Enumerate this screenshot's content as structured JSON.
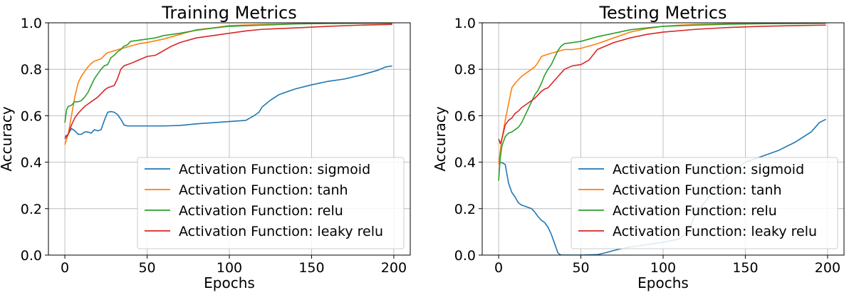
{
  "chart_data": [
    {
      "type": "line",
      "title": "Training Metrics",
      "xlabel": "Epochs",
      "ylabel": "Accuracy",
      "xlim": [
        -10,
        210
      ],
      "ylim": [
        0.0,
        1.0
      ],
      "xticks": [
        0,
        50,
        100,
        150,
        200
      ],
      "yticks": [
        0.0,
        0.2,
        0.4,
        0.6,
        0.8,
        1.0
      ],
      "xtick_labels": [
        "0",
        "50",
        "100",
        "150",
        "200"
      ],
      "ytick_labels": [
        "0.0",
        "0.2",
        "0.4",
        "0.6",
        "0.8",
        "1.0"
      ],
      "grid": true,
      "legend_position": "lower-right",
      "series": [
        {
          "name": "Activation Function: sigmoid",
          "color": "#1f77b4",
          "x": [
            0,
            2,
            4,
            6,
            8,
            10,
            12,
            14,
            16,
            18,
            20,
            22,
            24,
            26,
            28,
            30,
            32,
            34,
            36,
            38,
            40,
            50,
            60,
            70,
            80,
            90,
            100,
            110,
            115,
            118,
            120,
            125,
            130,
            135,
            140,
            150,
            160,
            170,
            180,
            190,
            195,
            199
          ],
          "y": [
            0.51,
            0.52,
            0.545,
            0.535,
            0.52,
            0.52,
            0.53,
            0.53,
            0.525,
            0.54,
            0.535,
            0.54,
            0.58,
            0.615,
            0.618,
            0.615,
            0.605,
            0.585,
            0.56,
            0.556,
            0.556,
            0.556,
            0.556,
            0.558,
            0.565,
            0.57,
            0.575,
            0.58,
            0.6,
            0.615,
            0.638,
            0.667,
            0.69,
            0.703,
            0.715,
            0.733,
            0.748,
            0.758,
            0.775,
            0.795,
            0.81,
            0.814
          ]
        },
        {
          "name": "Activation Function: tanh",
          "color": "#ff7f0e",
          "x": [
            0,
            2,
            4,
            6,
            8,
            10,
            12,
            14,
            16,
            18,
            20,
            22,
            24,
            26,
            28,
            30,
            35,
            40,
            45,
            50,
            60,
            70,
            80,
            90,
            100,
            120,
            140,
            160,
            180,
            199
          ],
          "y": [
            0.475,
            0.52,
            0.6,
            0.68,
            0.74,
            0.77,
            0.79,
            0.81,
            0.825,
            0.835,
            0.84,
            0.845,
            0.86,
            0.872,
            0.875,
            0.88,
            0.89,
            0.9,
            0.91,
            0.915,
            0.93,
            0.95,
            0.97,
            0.978,
            0.988,
            0.993,
            0.996,
            0.997,
            0.998,
            0.998
          ]
        },
        {
          "name": "Activation Function: relu",
          "color": "#2ca02c",
          "x": [
            0,
            1,
            2,
            4,
            6,
            8,
            10,
            12,
            14,
            16,
            18,
            20,
            22,
            24,
            26,
            28,
            30,
            32,
            34,
            36,
            38,
            40,
            45,
            50,
            55,
            60,
            70,
            80,
            90,
            100,
            120,
            140,
            160,
            180,
            199
          ],
          "y": [
            0.57,
            0.625,
            0.64,
            0.645,
            0.66,
            0.66,
            0.665,
            0.68,
            0.7,
            0.73,
            0.76,
            0.78,
            0.8,
            0.815,
            0.82,
            0.85,
            0.86,
            0.875,
            0.885,
            0.9,
            0.905,
            0.92,
            0.925,
            0.93,
            0.935,
            0.945,
            0.955,
            0.968,
            0.977,
            0.985,
            0.99,
            0.995,
            0.997,
            0.998,
            0.998
          ]
        },
        {
          "name": "Activation Function: leaky relu",
          "color": "#d62728",
          "x": [
            0,
            2,
            4,
            6,
            8,
            10,
            12,
            14,
            16,
            18,
            20,
            22,
            24,
            26,
            28,
            30,
            32,
            34,
            36,
            38,
            40,
            45,
            50,
            55,
            60,
            65,
            70,
            80,
            90,
            100,
            110,
            120,
            140,
            160,
            180,
            199
          ],
          "y": [
            0.5,
            0.52,
            0.56,
            0.59,
            0.61,
            0.625,
            0.64,
            0.65,
            0.66,
            0.67,
            0.68,
            0.695,
            0.71,
            0.72,
            0.725,
            0.73,
            0.76,
            0.8,
            0.815,
            0.82,
            0.825,
            0.84,
            0.855,
            0.86,
            0.88,
            0.9,
            0.915,
            0.935,
            0.945,
            0.955,
            0.965,
            0.972,
            0.978,
            0.985,
            0.99,
            0.993
          ]
        }
      ]
    },
    {
      "type": "line",
      "title": "Testing Metrics",
      "xlabel": "Epochs",
      "ylabel": "Accuracy",
      "xlim": [
        -10,
        210
      ],
      "ylim": [
        0.0,
        1.0
      ],
      "xticks": [
        0,
        50,
        100,
        150,
        200
      ],
      "yticks": [
        0.0,
        0.2,
        0.4,
        0.6,
        0.8,
        1.0
      ],
      "xtick_labels": [
        "0",
        "50",
        "100",
        "150",
        "200"
      ],
      "ytick_labels": [
        "0.0",
        "0.2",
        "0.4",
        "0.6",
        "0.8",
        "1.0"
      ],
      "grid": true,
      "legend_position": "lower-right",
      "series": [
        {
          "name": "Activation Function: sigmoid",
          "color": "#1f77b4",
          "x": [
            0,
            2,
            4,
            5,
            6,
            8,
            10,
            12,
            14,
            16,
            18,
            20,
            22,
            24,
            26,
            28,
            30,
            32,
            34,
            36,
            37,
            38,
            40,
            50,
            60,
            65,
            70,
            75,
            80,
            90,
            100,
            110,
            115,
            120,
            130,
            140,
            150,
            160,
            170,
            180,
            190,
            195,
            199
          ],
          "y": [
            0.4,
            0.398,
            0.39,
            0.35,
            0.31,
            0.27,
            0.25,
            0.225,
            0.215,
            0.21,
            0.205,
            0.2,
            0.185,
            0.165,
            0.15,
            0.14,
            0.12,
            0.09,
            0.05,
            0.01,
            0.004,
            0.0,
            0.0,
            0.0,
            0.002,
            0.01,
            0.02,
            0.028,
            0.035,
            0.045,
            0.055,
            0.07,
            0.1,
            0.18,
            0.27,
            0.35,
            0.4,
            0.425,
            0.45,
            0.485,
            0.53,
            0.57,
            0.585
          ]
        },
        {
          "name": "Activation Function: tanh",
          "color": "#ff7f0e",
          "x": [
            0,
            1,
            2,
            4,
            6,
            8,
            10,
            12,
            14,
            16,
            18,
            20,
            22,
            24,
            26,
            28,
            30,
            35,
            40,
            45,
            50,
            55,
            60,
            70,
            80,
            90,
            100,
            110,
            120,
            140,
            160,
            180,
            199
          ],
          "y": [
            0.39,
            0.45,
            0.5,
            0.58,
            0.65,
            0.72,
            0.74,
            0.755,
            0.77,
            0.78,
            0.79,
            0.8,
            0.81,
            0.83,
            0.855,
            0.86,
            0.865,
            0.875,
            0.885,
            0.885,
            0.89,
            0.9,
            0.91,
            0.935,
            0.96,
            0.975,
            0.985,
            0.99,
            0.993,
            0.996,
            0.997,
            0.997,
            0.998
          ]
        },
        {
          "name": "Activation Function: relu",
          "color": "#2ca02c",
          "x": [
            0,
            1,
            2,
            4,
            6,
            8,
            10,
            12,
            14,
            16,
            18,
            20,
            22,
            24,
            26,
            28,
            30,
            32,
            34,
            36,
            38,
            40,
            45,
            50,
            55,
            60,
            70,
            80,
            90,
            100,
            120,
            140,
            160,
            180,
            199
          ],
          "y": [
            0.32,
            0.42,
            0.47,
            0.51,
            0.525,
            0.53,
            0.54,
            0.55,
            0.57,
            0.6,
            0.63,
            0.66,
            0.69,
            0.71,
            0.74,
            0.775,
            0.8,
            0.82,
            0.85,
            0.88,
            0.9,
            0.91,
            0.915,
            0.92,
            0.93,
            0.94,
            0.955,
            0.97,
            0.978,
            0.985,
            0.99,
            0.994,
            0.996,
            0.997,
            0.998
          ]
        },
        {
          "name": "Activation Function: leaky relu",
          "color": "#d62728",
          "x": [
            0,
            1,
            2,
            4,
            6,
            8,
            10,
            12,
            14,
            16,
            18,
            20,
            22,
            24,
            26,
            28,
            30,
            35,
            40,
            45,
            50,
            55,
            60,
            65,
            70,
            80,
            90,
            100,
            120,
            140,
            160,
            180,
            199
          ],
          "y": [
            0.5,
            0.48,
            0.5,
            0.56,
            0.58,
            0.59,
            0.61,
            0.62,
            0.635,
            0.645,
            0.655,
            0.665,
            0.675,
            0.69,
            0.705,
            0.715,
            0.72,
            0.76,
            0.8,
            0.815,
            0.82,
            0.84,
            0.885,
            0.9,
            0.915,
            0.935,
            0.95,
            0.96,
            0.972,
            0.98,
            0.985,
            0.988,
            0.99
          ]
        }
      ]
    }
  ]
}
